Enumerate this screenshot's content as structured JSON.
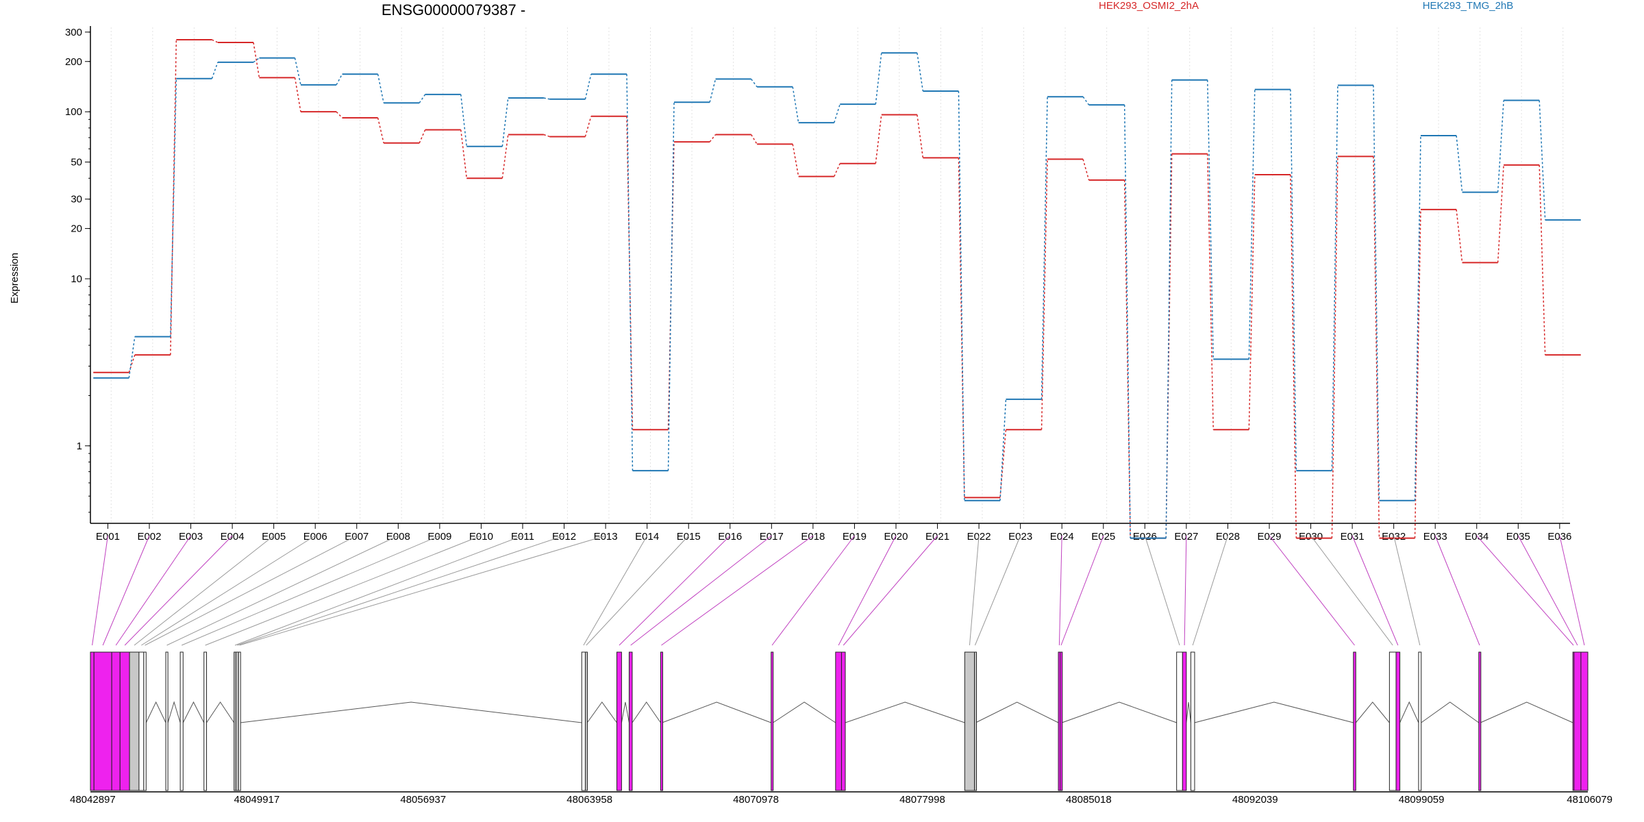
{
  "chart_data": {
    "type": "line",
    "title": "ENSG00000079387 -",
    "ylabel": "Expression",
    "yscale": "log",
    "ylim": [
      0.35,
      320
    ],
    "yticks": [
      1,
      10,
      20,
      30,
      50,
      100,
      200,
      300
    ],
    "grid": "vertical dotted lines at exons",
    "legend_position": "top",
    "categories": [
      "E001",
      "E002",
      "E003",
      "E004",
      "E005",
      "E006",
      "E007",
      "E008",
      "E009",
      "E010",
      "E011",
      "E012",
      "E013",
      "E014",
      "E015",
      "E016",
      "E017",
      "E018",
      "E019",
      "E020",
      "E021",
      "E022",
      "E023",
      "E024",
      "E025",
      "E026",
      "E027",
      "E028",
      "E029",
      "E030",
      "E031",
      "E032",
      "E033",
      "E034",
      "E035",
      "E036"
    ],
    "series": [
      {
        "name": "HEK293_OSMI2_2hA",
        "color": "#d62728",
        "values": [
          2.75,
          3.5,
          270,
          260,
          160,
          100,
          92,
          65,
          78,
          40,
          73,
          71,
          94,
          1.25,
          66,
          73,
          64,
          41,
          49,
          96,
          53,
          0.49,
          1.25,
          52,
          39,
          0.28,
          56,
          1.25,
          42,
          0.28,
          54,
          0.28,
          26,
          12.5,
          48,
          3.5
        ]
      },
      {
        "name": "HEK293_TMG_2hB",
        "color": "#1f77b4",
        "values": [
          2.55,
          4.5,
          158,
          198,
          210,
          145,
          168,
          113,
          127,
          62,
          121,
          119,
          168,
          0.71,
          114,
          157,
          141,
          86,
          111,
          225,
          133,
          0.47,
          1.9,
          123,
          110,
          0.28,
          155,
          3.3,
          136,
          0.71,
          144,
          0.47,
          72,
          33,
          117,
          22.5
        ]
      }
    ],
    "gene_model": {
      "coordinate_ticks": [
        "48042897",
        "48049917",
        "48056937",
        "48063958",
        "48070978",
        "48077998",
        "48085018",
        "48092039",
        "48099059",
        "48106079"
      ],
      "coordinate_range": [
        48042897,
        48106079
      ],
      "exons": [
        {
          "id": "E001",
          "start": 48042897,
          "end": 48043047,
          "color": "#ee22ee"
        },
        {
          "id": "E002",
          "start": 48043047,
          "end": 48043797,
          "color": "#ee22ee"
        },
        {
          "id": "E003",
          "start": 48043797,
          "end": 48044147,
          "color": "#ee22ee"
        },
        {
          "id": "E004",
          "start": 48044147,
          "end": 48044547,
          "color": "#ee22ee"
        },
        {
          "id": "E005",
          "start": 48044547,
          "end": 48044947,
          "color": "#c8c8c8"
        },
        {
          "id": "E006",
          "start": 48044947,
          "end": 48045147,
          "color": "#ffffff"
        },
        {
          "id": "E007",
          "start": 48045147,
          "end": 48045247,
          "color": "#ffffff"
        },
        {
          "id": "E008",
          "start": 48046077,
          "end": 48046167,
          "color": "#ffffff"
        },
        {
          "id": "E009",
          "start": 48046687,
          "end": 48046807,
          "color": "#ffffff"
        },
        {
          "id": "E010",
          "start": 48047687,
          "end": 48047797,
          "color": "#ffffff"
        },
        {
          "id": "E011",
          "start": 48048957,
          "end": 48049037,
          "color": "#c8c8c8"
        },
        {
          "id": "E012",
          "start": 48049037,
          "end": 48049147,
          "color": "#c8c8c8"
        },
        {
          "id": "E013",
          "start": 48049147,
          "end": 48049227,
          "color": "#ffffff"
        },
        {
          "id": "E014",
          "start": 48063628,
          "end": 48063778,
          "color": "#ffffff"
        },
        {
          "id": "E015",
          "start": 48063778,
          "end": 48063858,
          "color": "#c8c8c8"
        },
        {
          "id": "E016",
          "start": 48065108,
          "end": 48065308,
          "color": "#ee22ee"
        },
        {
          "id": "E017",
          "start": 48065628,
          "end": 48065758,
          "color": "#ee22ee"
        },
        {
          "id": "E018",
          "start": 48066958,
          "end": 48067018,
          "color": "#ee22ee"
        },
        {
          "id": "E019",
          "start": 48071618,
          "end": 48071698,
          "color": "#ee22ee"
        },
        {
          "id": "E020",
          "start": 48074338,
          "end": 48074588,
          "color": "#ee22ee"
        },
        {
          "id": "E021",
          "start": 48074588,
          "end": 48074748,
          "color": "#ee22ee"
        },
        {
          "id": "E022",
          "start": 48079788,
          "end": 48080198,
          "color": "#c8c8c8"
        },
        {
          "id": "E023",
          "start": 48080198,
          "end": 48080248,
          "color": "#c8c8c8"
        },
        {
          "id": "E024",
          "start": 48083738,
          "end": 48083818,
          "color": "#ee22ee"
        },
        {
          "id": "E025",
          "start": 48083818,
          "end": 48083888,
          "color": "#ee22ee"
        },
        {
          "id": "E026",
          "start": 48088728,
          "end": 48088978,
          "color": "#ffffff"
        },
        {
          "id": "E027",
          "start": 48088978,
          "end": 48089138,
          "color": "#ee22ee"
        },
        {
          "id": "E028",
          "start": 48089328,
          "end": 48089488,
          "color": "#ffffff"
        },
        {
          "id": "E029",
          "start": 48096188,
          "end": 48096288,
          "color": "#ee22ee"
        },
        {
          "id": "E030",
          "start": 48097708,
          "end": 48097988,
          "color": "#ffffff"
        },
        {
          "id": "E031",
          "start": 48097988,
          "end": 48098148,
          "color": "#ee22ee"
        },
        {
          "id": "E032",
          "start": 48098938,
          "end": 48099048,
          "color": "#ffffff"
        },
        {
          "id": "E033",
          "start": 48101478,
          "end": 48101548,
          "color": "#ee22ee"
        },
        {
          "id": "E034",
          "start": 48105448,
          "end": 48105498,
          "color": "#ee22ee"
        },
        {
          "id": "E035",
          "start": 48105498,
          "end": 48105788,
          "color": "#ee22ee"
        },
        {
          "id": "E036",
          "start": 48105788,
          "end": 48106079,
          "color": "#ee22ee"
        }
      ]
    }
  }
}
